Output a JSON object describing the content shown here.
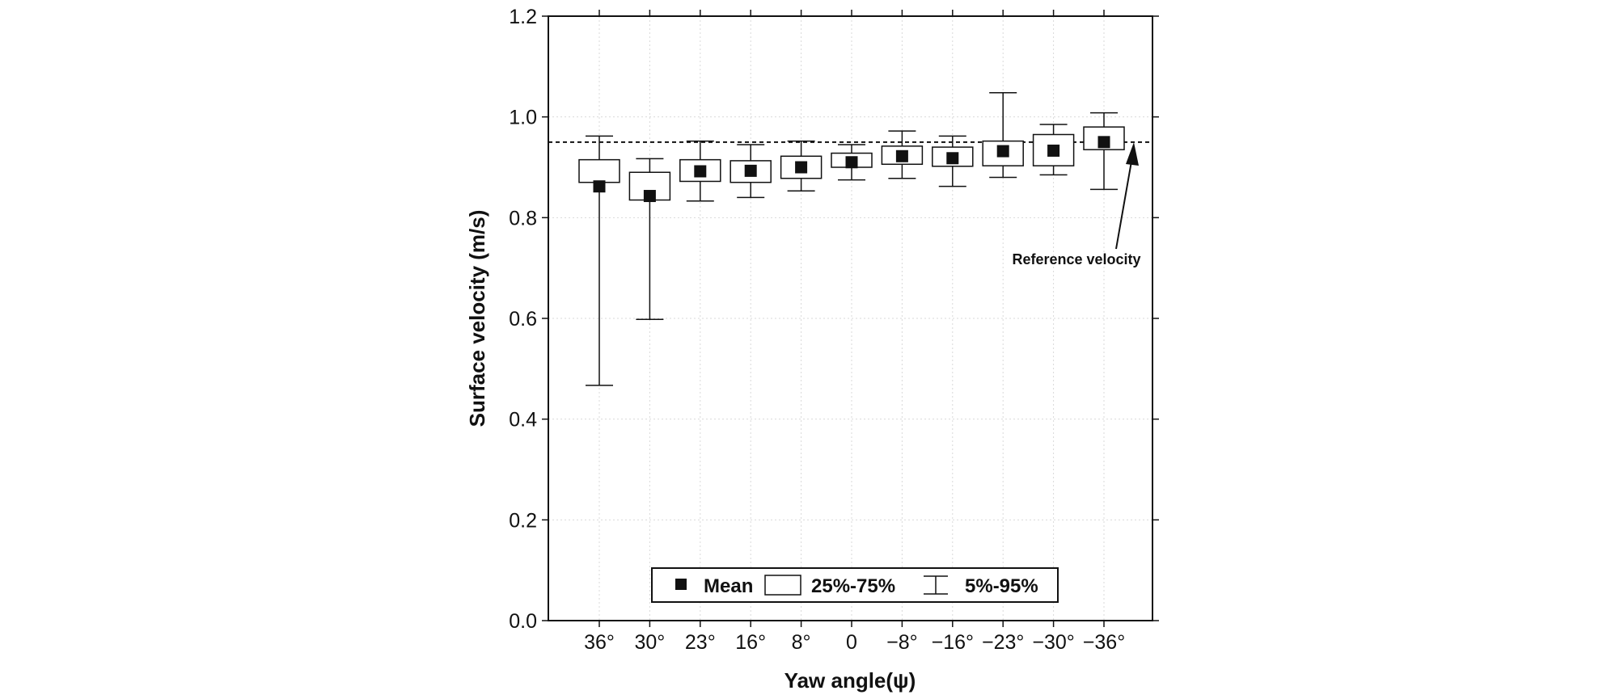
{
  "chart_data": {
    "type": "box",
    "title": "",
    "xlabel": "Yaw angle(ψ)",
    "ylabel": "Surface velocity (m/s)",
    "ylim": [
      0.0,
      1.2
    ],
    "yticks": [
      "0.0",
      "0.2",
      "0.4",
      "0.6",
      "0.8",
      "1.0",
      "1.2"
    ],
    "grid": true,
    "categories": [
      "36°",
      "30°",
      "23°",
      "16°",
      "8°",
      "0",
      "−8°",
      "−16°",
      "−23°",
      "−30°",
      "−36°"
    ],
    "mean": [
      0.862,
      0.843,
      0.892,
      0.893,
      0.9,
      0.91,
      0.922,
      0.918,
      0.932,
      0.933,
      0.95
    ],
    "q25": [
      0.87,
      0.835,
      0.872,
      0.87,
      0.878,
      0.9,
      0.906,
      0.902,
      0.903,
      0.903,
      0.935
    ],
    "q75": [
      0.915,
      0.89,
      0.915,
      0.913,
      0.922,
      0.928,
      0.942,
      0.94,
      0.952,
      0.965,
      0.98
    ],
    "p5": [
      0.467,
      0.598,
      0.833,
      0.84,
      0.853,
      0.875,
      0.878,
      0.862,
      0.88,
      0.885,
      0.856
    ],
    "p95": [
      0.962,
      0.917,
      0.952,
      0.945,
      0.952,
      0.945,
      0.972,
      0.962,
      1.048,
      0.985,
      1.008
    ],
    "reference_velocity": 0.95,
    "annotation": "Reference velocity",
    "legend": {
      "position": "bottom-center",
      "items": [
        "Mean",
        "25%-75%",
        "5%-95%"
      ]
    }
  }
}
